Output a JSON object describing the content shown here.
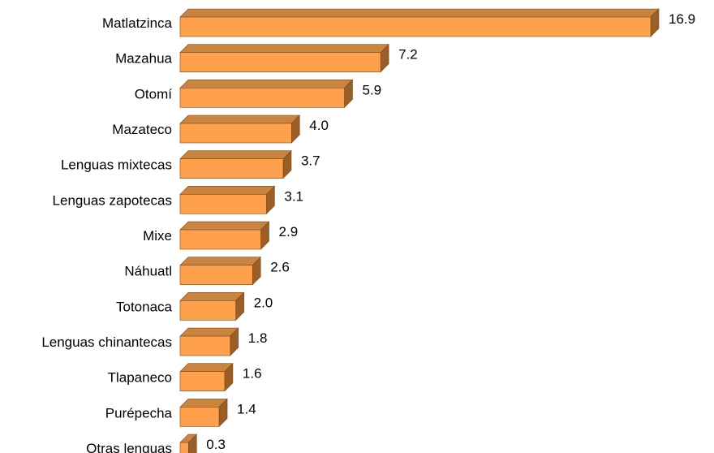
{
  "chart_data": {
    "type": "bar",
    "orientation": "horizontal",
    "style": "3d",
    "categories": [
      "Matlatzinca",
      "Mazahua",
      "Otomí",
      "Mazateco",
      "Lenguas mixtecas",
      "Lenguas zapotecas",
      "Mixe",
      "Náhuatl",
      "Totonaca",
      "Lenguas chinantecas",
      "Tlapaneco",
      "Purépecha",
      "Otras lenguas"
    ],
    "values": [
      16.9,
      7.2,
      5.9,
      4.0,
      3.7,
      3.1,
      2.9,
      2.6,
      2.0,
      1.8,
      1.6,
      1.4,
      0.3
    ],
    "value_labels": [
      "16.9",
      "7.2",
      "5.9",
      "4.0",
      "3.7",
      "3.1",
      "2.9",
      "2.6",
      "2.0",
      "1.8",
      "1.6",
      "1.4",
      "0.3"
    ],
    "title": "",
    "xlabel": "",
    "ylabel": "",
    "xlim": [
      0,
      16.9
    ],
    "grid": false,
    "legend": "none",
    "colors": {
      "front": "#FFA04D",
      "top": "#C98440",
      "side": "#9B5E27",
      "outline": "#7A4A1E"
    }
  }
}
